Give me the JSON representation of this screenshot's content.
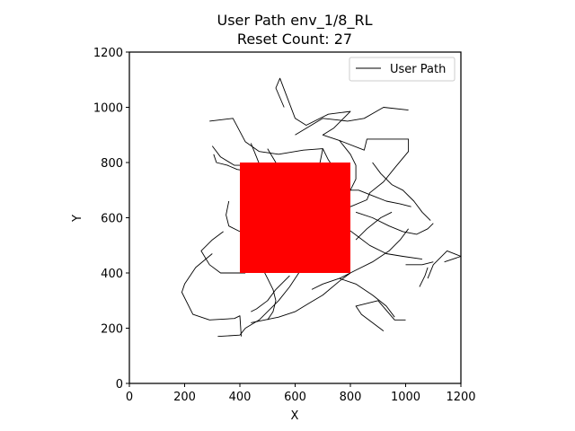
{
  "chart_data": {
    "type": "line",
    "title": "User Path env_1/8_RL",
    "subtitle": "Reset Count: 27",
    "xlabel": "X",
    "ylabel": "Y",
    "xlim": [
      0,
      1200
    ],
    "ylim": [
      0,
      1200
    ],
    "xticks": [
      "0",
      "200",
      "400",
      "600",
      "800",
      "1000",
      "1200"
    ],
    "yticks": [
      "0",
      "200",
      "400",
      "600",
      "800",
      "1000",
      "1200"
    ],
    "legend": {
      "entries": [
        "User Path"
      ],
      "placement": "top-right"
    },
    "colors": {
      "path": "#000000",
      "obstacle": "#ff0000"
    },
    "obstacle": {
      "x": [
        400,
        800
      ],
      "y": [
        400,
        800
      ]
    },
    "series": [
      {
        "name": "User Path",
        "segments": [
          [
            [
              560,
              1000
            ],
            [
              530,
              1070
            ],
            [
              545,
              1105
            ],
            [
              600,
              960
            ],
            [
              640,
              935
            ],
            [
              720,
              975
            ],
            [
              800,
              985
            ],
            [
              740,
              925
            ],
            [
              700,
              900
            ],
            [
              760,
              880
            ],
            [
              850,
              845
            ],
            [
              860,
              885
            ],
            [
              1010,
              885
            ],
            [
              1010,
              840
            ],
            [
              960,
              780
            ],
            [
              920,
              730
            ],
            [
              870,
              690
            ],
            [
              860,
              665
            ],
            [
              800,
              640
            ]
          ],
          [
            [
              290,
              950
            ],
            [
              375,
              960
            ],
            [
              420,
              875
            ],
            [
              470,
              840
            ],
            [
              540,
              830
            ],
            [
              630,
              845
            ],
            [
              700,
              850
            ],
            [
              690,
              800
            ],
            [
              640,
              750
            ],
            [
              610,
              690
            ],
            [
              580,
              620
            ],
            [
              565,
              580
            ],
            [
              570,
              520
            ],
            [
              600,
              470
            ],
            [
              620,
              430
            ]
          ],
          [
            [
              305,
              830
            ],
            [
              315,
              800
            ],
            [
              355,
              790
            ],
            [
              390,
              775
            ],
            [
              420,
              770
            ]
          ],
          [
            [
              300,
              860
            ],
            [
              330,
              820
            ],
            [
              380,
              790
            ],
            [
              415,
              790
            ]
          ],
          [
            [
              360,
              660
            ],
            [
              350,
              610
            ],
            [
              360,
              570
            ],
            [
              400,
              550
            ]
          ],
          [
            [
              340,
              550
            ],
            [
              300,
              520
            ],
            [
              260,
              480
            ],
            [
              290,
              430
            ],
            [
              330,
              400
            ],
            [
              420,
              400
            ]
          ],
          [
            [
              300,
              470
            ],
            [
              240,
              420
            ],
            [
              200,
              360
            ],
            [
              190,
              330
            ],
            [
              230,
              250
            ],
            [
              290,
              230
            ],
            [
              380,
              235
            ],
            [
              400,
              245
            ],
            [
              405,
              170
            ]
          ],
          [
            [
              320,
              170
            ],
            [
              400,
              175
            ],
            [
              420,
              200
            ],
            [
              470,
              230
            ],
            [
              540,
              300
            ],
            [
              580,
              350
            ],
            [
              620,
              410
            ]
          ],
          [
            [
              580,
              390
            ],
            [
              530,
              340
            ],
            [
              500,
              300
            ],
            [
              460,
              270
            ],
            [
              440,
              260
            ]
          ],
          [
            [
              440,
              220
            ],
            [
              540,
              240
            ],
            [
              600,
              260
            ],
            [
              650,
              290
            ],
            [
              700,
              320
            ],
            [
              760,
              370
            ],
            [
              800,
              400
            ]
          ],
          [
            [
              660,
              340
            ],
            [
              700,
              360
            ],
            [
              760,
              380
            ],
            [
              820,
              360
            ],
            [
              880,
              320
            ],
            [
              930,
              280
            ],
            [
              960,
              240
            ]
          ],
          [
            [
              760,
              380
            ],
            [
              820,
              410
            ],
            [
              880,
              440
            ],
            [
              940,
              480
            ],
            [
              980,
              520
            ],
            [
              1010,
              560
            ]
          ],
          [
            [
              1080,
              380
            ],
            [
              1100,
              430
            ],
            [
              1150,
              480
            ],
            [
              1200,
              460
            ],
            [
              1140,
              440
            ]
          ],
          [
            [
              1000,
              430
            ],
            [
              1060,
              430
            ],
            [
              1100,
              440
            ]
          ],
          [
            [
              1050,
              350
            ],
            [
              1070,
              390
            ],
            [
              1080,
              420
            ]
          ],
          [
            [
              920,
              190
            ],
            [
              880,
              220
            ],
            [
              840,
              250
            ],
            [
              820,
              280
            ],
            [
              900,
              300
            ],
            [
              960,
              230
            ],
            [
              1000,
              230
            ]
          ],
          [
            [
              600,
              900
            ],
            [
              700,
              960
            ],
            [
              790,
              950
            ],
            [
              850,
              960
            ],
            [
              920,
              1000
            ],
            [
              1010,
              990
            ]
          ],
          [
            [
              880,
              800
            ],
            [
              910,
              760
            ],
            [
              950,
              720
            ],
            [
              990,
              700
            ],
            [
              1030,
              660
            ],
            [
              1060,
              620
            ],
            [
              1090,
              590
            ]
          ],
          [
            [
              820,
              620
            ],
            [
              880,
              600
            ],
            [
              940,
              570
            ],
            [
              990,
              550
            ],
            [
              1040,
              540
            ],
            [
              1080,
              560
            ],
            [
              1100,
              580
            ]
          ],
          [
            [
              790,
              560
            ],
            [
              830,
              530
            ],
            [
              870,
              500
            ],
            [
              930,
              470
            ],
            [
              990,
              460
            ],
            [
              1060,
              450
            ]
          ],
          [
            [
              820,
              520
            ],
            [
              860,
              560
            ],
            [
              910,
              600
            ],
            [
              950,
              620
            ]
          ],
          [
            [
              780,
              700
            ],
            [
              830,
              700
            ],
            [
              880,
              680
            ],
            [
              930,
              660
            ],
            [
              980,
              650
            ],
            [
              1020,
              640
            ]
          ],
          [
            [
              760,
              880
            ],
            [
              800,
              830
            ],
            [
              820,
              790
            ],
            [
              820,
              740
            ],
            [
              800,
              700
            ],
            [
              780,
              650
            ]
          ],
          [
            [
              440,
              870
            ],
            [
              460,
              820
            ],
            [
              480,
              770
            ],
            [
              490,
              730
            ],
            [
              500,
              700
            ]
          ],
          [
            [
              500,
              850
            ],
            [
              530,
              800
            ],
            [
              560,
              760
            ],
            [
              600,
              730
            ],
            [
              630,
              700
            ]
          ],
          [
            [
              700,
              850
            ],
            [
              720,
              810
            ],
            [
              740,
              780
            ],
            [
              750,
              750
            ],
            [
              760,
              700
            ]
          ],
          [
            [
              540,
              600
            ],
            [
              560,
              560
            ],
            [
              580,
              520
            ],
            [
              600,
              480
            ],
            [
              610,
              440
            ],
            [
              600,
              400
            ]
          ],
          [
            [
              480,
              420
            ],
            [
              500,
              380
            ],
            [
              520,
              340
            ],
            [
              530,
              300
            ],
            [
              520,
              260
            ],
            [
              500,
              230
            ]
          ]
        ]
      }
    ]
  }
}
